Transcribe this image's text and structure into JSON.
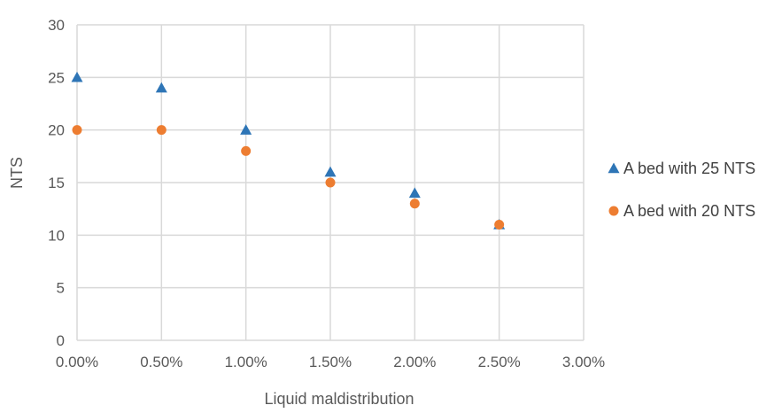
{
  "chart_data": {
    "type": "scatter",
    "title": "",
    "xlabel": "Liquid maldistribution",
    "ylabel": "NTS",
    "xlim": [
      0,
      0.03
    ],
    "ylim": [
      0,
      30
    ],
    "x_ticks": [
      0,
      0.005,
      0.01,
      0.015,
      0.02,
      0.025,
      0.03
    ],
    "x_tick_labels": [
      "0.00%",
      "0.50%",
      "1.00%",
      "1.50%",
      "2.00%",
      "2.50%",
      "3.00%"
    ],
    "y_ticks": [
      0,
      5,
      10,
      15,
      20,
      25,
      30
    ],
    "y_tick_labels": [
      "0",
      "5",
      "10",
      "15",
      "20",
      "25",
      "30"
    ],
    "grid": true,
    "legend_position": "right",
    "series": [
      {
        "name": "A bed with 25 NTS",
        "marker": "triangle",
        "color": "#2e75b6",
        "x": [
          0,
          0.005,
          0.01,
          0.015,
          0.02,
          0.025
        ],
        "y": [
          25,
          24,
          20,
          16,
          14,
          11
        ]
      },
      {
        "name": "A bed with 20 NTS",
        "marker": "circle",
        "color": "#ed7d31",
        "x": [
          0,
          0.005,
          0.01,
          0.015,
          0.02,
          0.025
        ],
        "y": [
          20,
          20,
          18,
          15,
          13,
          11
        ]
      }
    ]
  }
}
